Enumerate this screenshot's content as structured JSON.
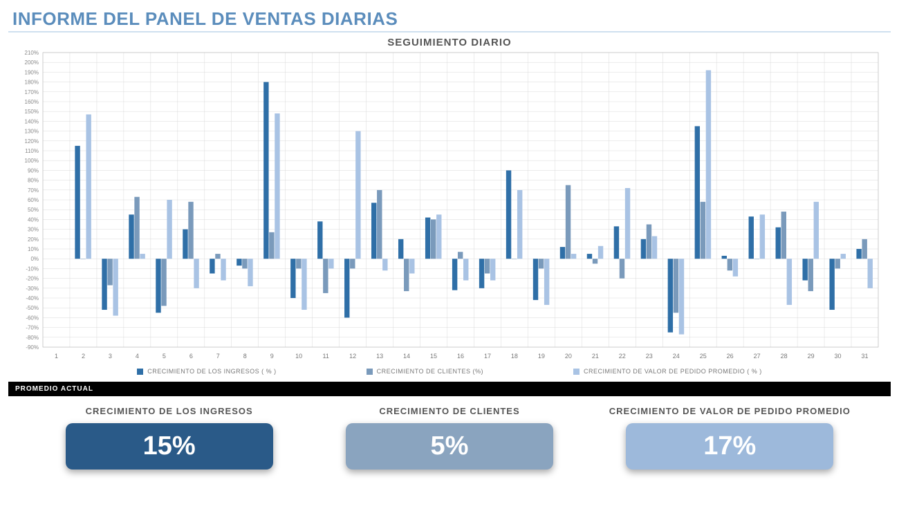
{
  "title": {
    "text": "INFORME DEL PANEL DE VENTAS DIARIAS",
    "color": "#5b8dbc"
  },
  "chart": {
    "title": "SEGUIMIENTO DIARIO",
    "title_color": "#555555",
    "type": "bar",
    "background_color": "#ffffff",
    "grid_color": "#d9d9d9",
    "plot_border_color": "#bfbfbf",
    "ylim": [
      -90,
      210
    ],
    "ytick_step": 10,
    "y_suffix": "%",
    "categories": [
      "1",
      "2",
      "3",
      "4",
      "5",
      "6",
      "7",
      "8",
      "9",
      "10",
      "11",
      "12",
      "13",
      "14",
      "15",
      "16",
      "17",
      "18",
      "19",
      "20",
      "21",
      "22",
      "23",
      "24",
      "25",
      "26",
      "27",
      "28",
      "29",
      "30",
      "31"
    ],
    "series": [
      {
        "name": "CRECIMIENTO DE LOS INGRESOS ( % )",
        "color": "#2f6fa7",
        "values": [
          null,
          115,
          -52,
          45,
          -55,
          30,
          -15,
          -7,
          180,
          -40,
          38,
          -60,
          57,
          20,
          42,
          -32,
          -30,
          90,
          -42,
          12,
          5,
          33,
          20,
          -75,
          135,
          3,
          43,
          32,
          -22,
          -52,
          10
        ]
      },
      {
        "name": "CRECIMIENTO DE CLIENTES (%)",
        "color": "#7a9abb",
        "values": [
          null,
          0,
          -27,
          63,
          -48,
          58,
          5,
          -10,
          27,
          -10,
          -35,
          -10,
          70,
          -33,
          40,
          7,
          -15,
          0,
          -10,
          75,
          -5,
          -20,
          35,
          -55,
          58,
          -12,
          0,
          48,
          -33,
          -10,
          20
        ]
      },
      {
        "name": "CRECIMIENTO DE VALOR DE PEDIDO PROMEDIO ( % )",
        "color": "#a9c3e4",
        "values": [
          null,
          147,
          -58,
          5,
          60,
          -30,
          -22,
          -28,
          148,
          -52,
          -10,
          130,
          -12,
          -15,
          45,
          -22,
          -22,
          70,
          -47,
          5,
          13,
          72,
          23,
          -77,
          192,
          -18,
          45,
          -47,
          58,
          5,
          -30
        ]
      }
    ]
  },
  "section_header": "PROMEDIO ACTUAL",
  "kpis": [
    {
      "label": "CRECIMIENTO DE LOS INGRESOS",
      "value": "15%",
      "bg": "#2a5a88"
    },
    {
      "label": "CRECIMIENTO DE CLIENTES",
      "value": "5%",
      "bg": "#8aa4bf"
    },
    {
      "label": "CRECIMIENTO DE VALOR DE PEDIDO PROMEDIO",
      "value": "17%",
      "bg": "#9db9db"
    }
  ]
}
